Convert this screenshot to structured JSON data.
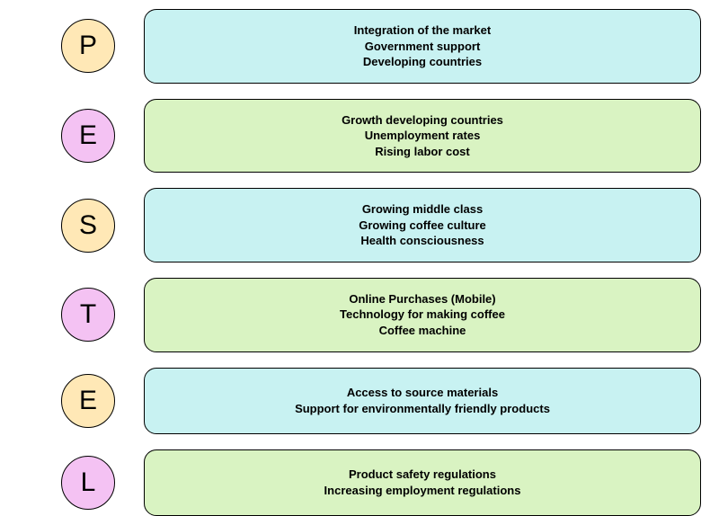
{
  "diagram": {
    "type": "infographic",
    "background_color": "#ffffff",
    "circle_stroke": "#000000",
    "box_stroke": "#000000",
    "letter_fontsize": 30,
    "content_fontsize": 13,
    "content_fontweight": 700,
    "box_radius": 14,
    "colors": {
      "tan": "#ffe8b6",
      "pink": "#f4c2f3",
      "aqua": "#c8f2f2",
      "lime": "#d9f3c2"
    },
    "rows": [
      {
        "letter": "P",
        "circle_color": "tan",
        "box_color": "aqua",
        "lines": [
          "Integration of the market",
          "Government support",
          "Developing countries"
        ]
      },
      {
        "letter": "E",
        "circle_color": "pink",
        "box_color": "lime",
        "lines": [
          "Growth developing countries",
          "Unemployment rates",
          "Rising labor cost"
        ]
      },
      {
        "letter": "S",
        "circle_color": "tan",
        "box_color": "aqua",
        "lines": [
          "Growing middle class",
          "Growing coffee culture",
          "Health consciousness"
        ]
      },
      {
        "letter": "T",
        "circle_color": "pink",
        "box_color": "lime",
        "lines": [
          "Online Purchases (Mobile)",
          "Technology for making coffee",
          "Coffee machine"
        ]
      },
      {
        "letter": "E",
        "circle_color": "tan",
        "box_color": "aqua",
        "lines": [
          "Access to source materials",
          "Support for environmentally friendly products"
        ]
      },
      {
        "letter": "L",
        "circle_color": "pink",
        "box_color": "lime",
        "lines": [
          "Product safety regulations",
          "Increasing employment regulations"
        ]
      }
    ]
  }
}
